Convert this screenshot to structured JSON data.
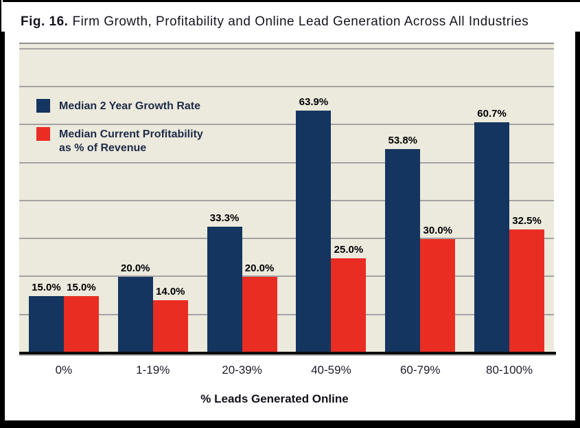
{
  "figure_title": {
    "prefix": "Fig. 16.",
    "text": "Firm Growth, Profitability and Online Lead Generation Across All Industries"
  },
  "x_axis_title": "% Leads Generated Online",
  "legend": {
    "items": [
      {
        "color": "#14355f",
        "label_lines": [
          "Median 2 Year Growth Rate"
        ]
      },
      {
        "color": "#e92d22",
        "label_lines": [
          "Median Current Profitability",
          "as % of Revenue"
        ]
      }
    ]
  },
  "chart_data": {
    "type": "bar",
    "title": "Fig. 16. Firm Growth, Profitability and Online Lead Generation Across All Industries",
    "xlabel": "% Leads Generated Online",
    "ylabel": "",
    "categories": [
      "0%",
      "1-19%",
      "20-39%",
      "40-59%",
      "60-79%",
      "80-100%"
    ],
    "series": [
      {
        "name": "Median 2 Year Growth Rate",
        "color": "#14355f",
        "values": [
          15.0,
          20.0,
          33.3,
          63.9,
          53.8,
          60.7
        ],
        "labels": [
          "15.0%",
          "20.0%",
          "33.3%",
          "63.9%",
          "53.8%",
          "60.7%"
        ]
      },
      {
        "name": "Median Current Profitability as % of Revenue",
        "color": "#e92d22",
        "values": [
          15.0,
          14.0,
          20.0,
          25.0,
          30.0,
          32.5
        ],
        "labels": [
          "15.0%",
          "14.0%",
          "20.0%",
          "25.0%",
          "30.0%",
          "32.5%"
        ]
      }
    ],
    "ylim": [
      0,
      81.4
    ],
    "grid": true,
    "grid_step": 10,
    "legend_position": "top-left-inside",
    "plot_background": "#ece9dd",
    "gridline_color": "#a3a3a3",
    "axis_line_color": "#0d0d0d"
  }
}
